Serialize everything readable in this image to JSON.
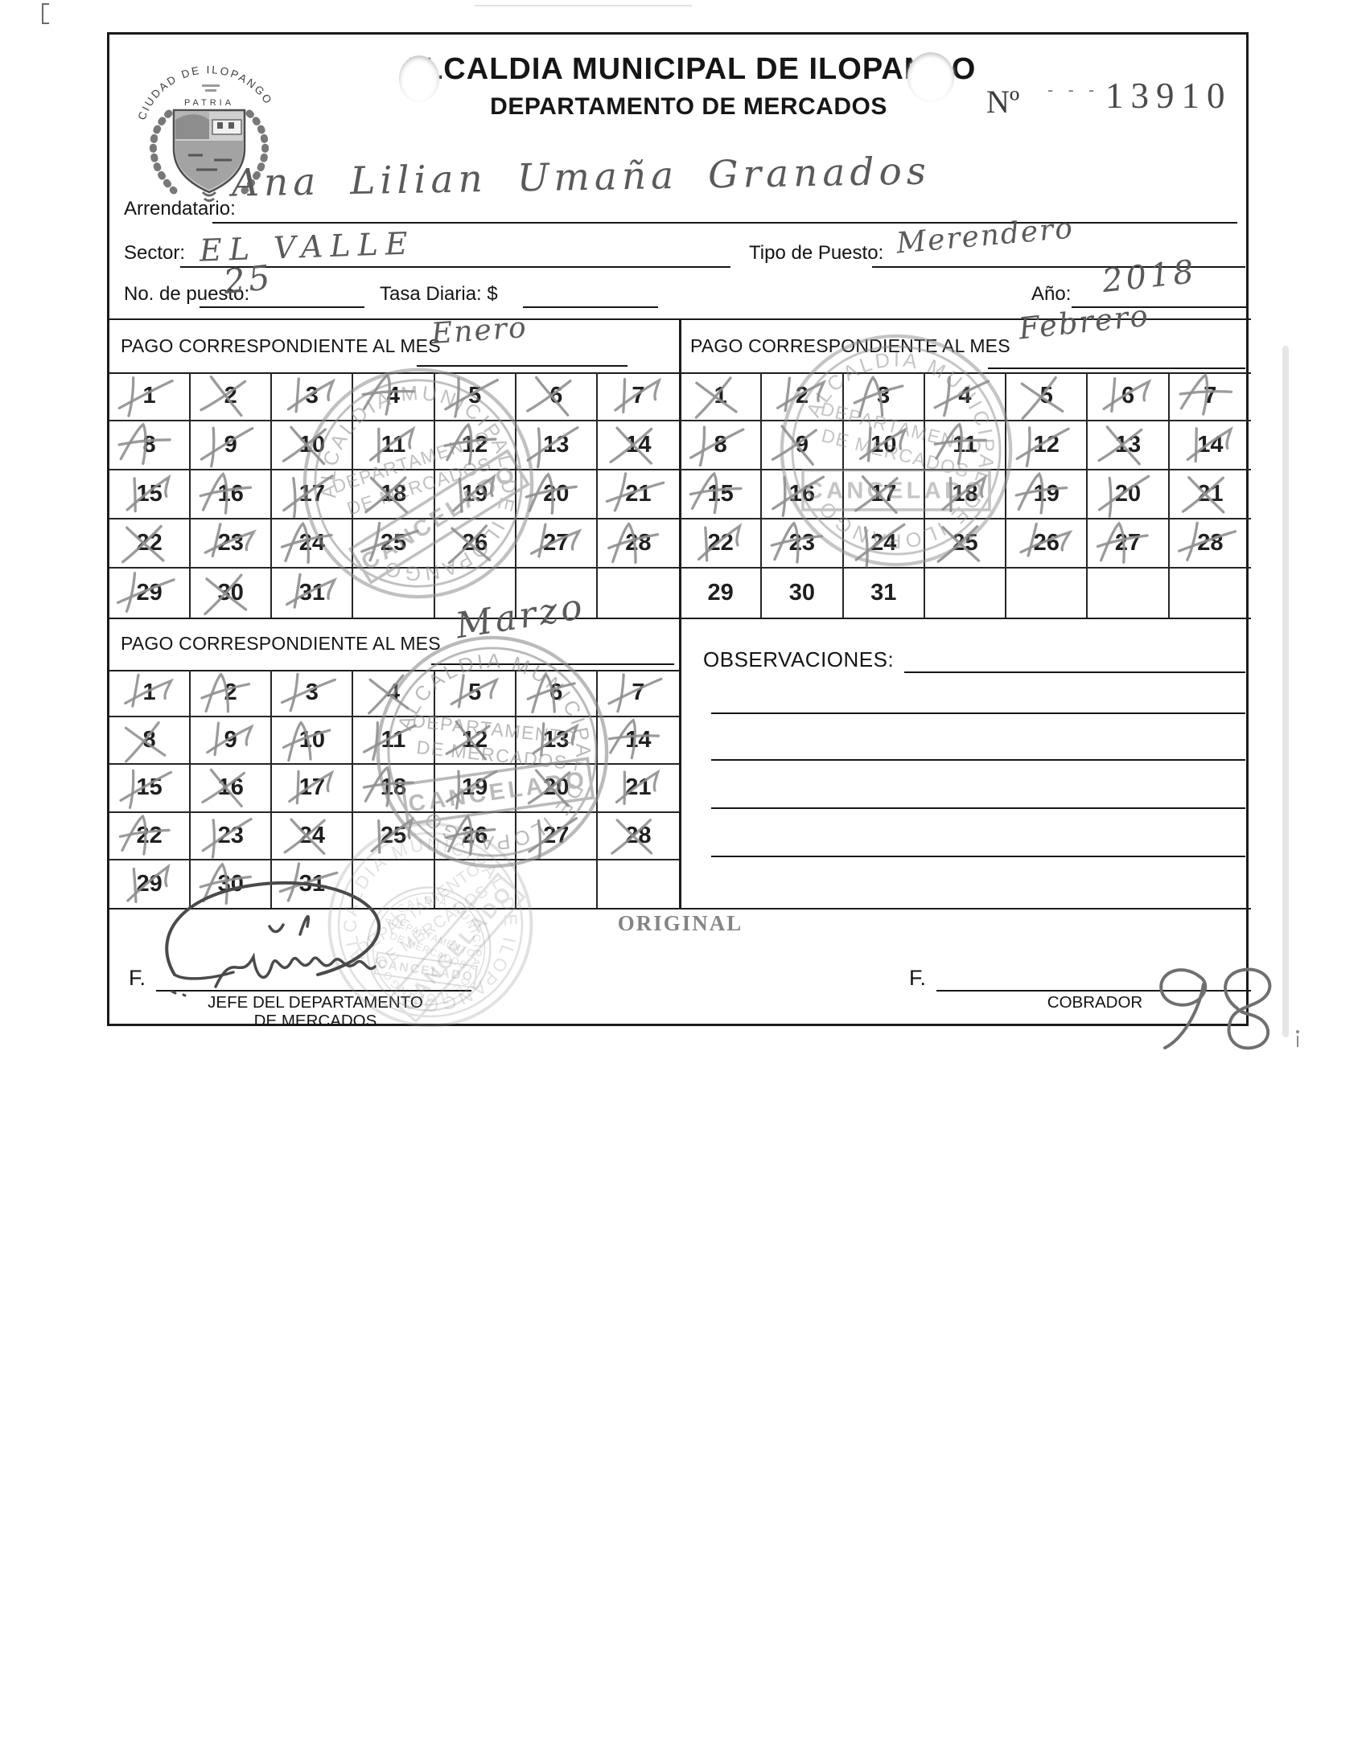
{
  "header": {
    "title_line1": "ALCALDIA MUNICIPAL DE ILOPANGO",
    "title_line2": "DEPARTAMENTO DE MERCADOS",
    "receipt_no_label": "Nº",
    "receipt_no_dashes": "- - -",
    "receipt_no_value": "13910",
    "logo_arc_text": "CIUDAD DE ILOPANGO",
    "logo_motto": "PATRIA"
  },
  "fields": {
    "arrendatario_label": "Arrendatario:",
    "arrendatario_value": "Ana Lilian Umaña Granados",
    "sector_label": "Sector:",
    "sector_value": "EL VALLE",
    "tipo_puesto_label": "Tipo de Puesto:",
    "tipo_puesto_value": "Merendero",
    "no_puesto_label": "No. de puesto:",
    "no_puesto_value": "25",
    "tasa_label": "Tasa Diaria: $",
    "tasa_value": "",
    "anio_label": "Año:",
    "anio_value": "2018"
  },
  "calendar_header_label": "PAGO CORRESPONDIENTE AL MES",
  "calendars": [
    {
      "month_value": "Enero",
      "days_in_grid": 31,
      "marked_days": [
        1,
        2,
        3,
        4,
        5,
        6,
        7,
        8,
        9,
        10,
        11,
        12,
        13,
        14,
        15,
        16,
        17,
        18,
        19,
        20,
        21,
        22,
        23,
        24,
        25,
        26,
        27,
        28,
        29,
        30,
        31
      ]
    },
    {
      "month_value": "Febrero",
      "days_in_grid": 31,
      "marked_days": [
        1,
        2,
        3,
        4,
        5,
        6,
        7,
        8,
        9,
        10,
        11,
        12,
        13,
        14,
        15,
        16,
        17,
        18,
        19,
        20,
        21,
        22,
        23,
        24,
        25,
        26,
        27,
        28
      ]
    },
    {
      "month_value": "Marzo",
      "days_in_grid": 31,
      "marked_days": [
        1,
        2,
        3,
        4,
        5,
        6,
        7,
        8,
        9,
        10,
        11,
        12,
        13,
        14,
        15,
        16,
        17,
        18,
        19,
        20,
        21,
        22,
        23,
        24,
        25,
        26,
        27,
        28,
        29,
        30,
        31
      ]
    }
  ],
  "observaciones_label": "OBSERVACIONES:",
  "stamp": {
    "ring_text": "ALCALDIA MUNICIPAL DE ILOPANGO",
    "center_line1": "DEPARTAMENTO",
    "center_line2": "DE MERCADOS",
    "cancel_text": "CANCELADO"
  },
  "footer": {
    "original_label": "ORIGINAL",
    "f_label": "F.",
    "jefe_line1": "JEFE DEL DEPARTAMENTO",
    "jefe_line2": "DE MERCADOS",
    "cobrador_label": "COBRADOR"
  }
}
